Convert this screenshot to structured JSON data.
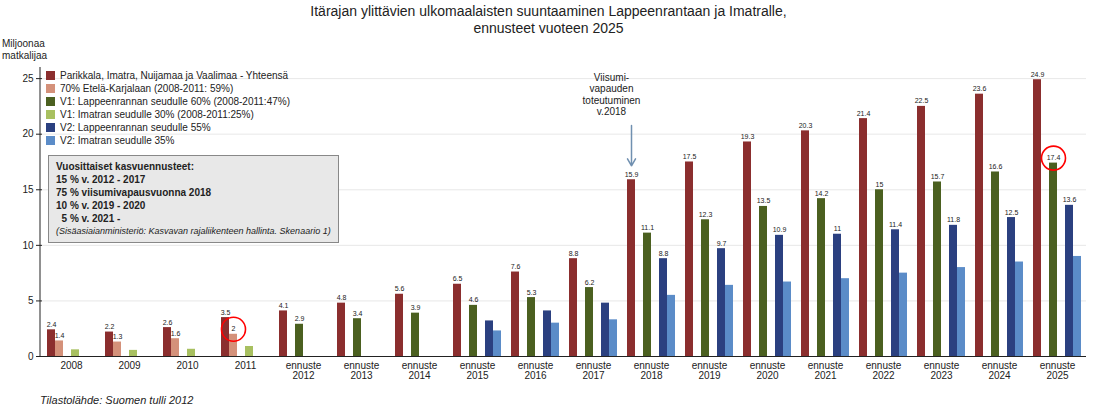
{
  "chart_data": {
    "type": "bar",
    "title": "Itärajan ylittävien ulkomaalaisten suuntaaminen Lappeenrantaan ja Imatralle,\nennusteet vuoteen 2025",
    "ylabel": "Miljoonaa\nmatkalijaa",
    "source": "Tilastolähde: Suomen tulli 2012",
    "categories": [
      "2008",
      "2009",
      "2010",
      "2011",
      "ennuste\n2012",
      "ennuste\n2013",
      "ennuste\n2014",
      "ennuste\n2015",
      "ennuste\n2016",
      "ennuste\n2017",
      "ennuste\n2018",
      "ennuste\n2019",
      "ennuste\n2020",
      "ennuste\n2021",
      "ennuste\n2022",
      "ennuste\n2023",
      "ennuste\n2024",
      "ennuste\n2025"
    ],
    "series": [
      {
        "name": "Parikkala, Imatra, Nuijamaa ja Vaalimaa - Yhteensä",
        "color": "#8B2E2E",
        "values": [
          2.4,
          2.2,
          2.6,
          3.5,
          4.1,
          4.8,
          5.6,
          6.5,
          7.6,
          8.8,
          15.9,
          17.5,
          19.3,
          20.3,
          21.4,
          22.5,
          23.6,
          24.9
        ],
        "value_labels": [
          "2.4",
          "2.2",
          "2.6",
          "3.5",
          "4.1",
          "4.8",
          "5.6",
          "6.5",
          "7.6",
          "8.8",
          "15.9",
          "17.5",
          "19.3",
          "20.3",
          "21.4",
          "22.5",
          "23.6",
          "24.9"
        ]
      },
      {
        "name": "70% Etelä-Karjalaan (2008-2011: 59%)",
        "color": "#D4917A",
        "values": [
          1.4,
          1.3,
          1.6,
          2.0,
          null,
          null,
          null,
          null,
          null,
          null,
          null,
          null,
          null,
          null,
          null,
          null,
          null,
          null
        ],
        "value_labels": [
          "1.4",
          "1.3",
          "1.6",
          "2",
          null,
          null,
          null,
          null,
          null,
          null,
          null,
          null,
          null,
          null,
          null,
          null,
          null,
          null
        ]
      },
      {
        "name": "V1: Lappeenrannan seudulle 60% (2008-2011:47%)",
        "color": "#4B6020",
        "values": [
          null,
          null,
          null,
          null,
          2.9,
          3.4,
          3.9,
          4.6,
          5.3,
          6.2,
          11.1,
          12.3,
          13.5,
          14.2,
          15.0,
          15.7,
          16.6,
          17.4
        ],
        "value_labels": [
          null,
          null,
          null,
          null,
          "2.9",
          "3.4",
          "3.9",
          "4.6",
          "5.3",
          "6.2",
          "11.1",
          "12.3",
          "13.5",
          "14.2",
          "15",
          "15.7",
          "16.6",
          "17.4"
        ]
      },
      {
        "name": "V1: Imatran seudulle 30% (2008-2011:25%)",
        "color": "#A8C060",
        "values": [
          0.6,
          0.55,
          0.65,
          0.9,
          null,
          null,
          null,
          null,
          null,
          null,
          null,
          null,
          null,
          null,
          null,
          null,
          null,
          null
        ]
      },
      {
        "name": "V2: Lappeenrannan seudulle 55%",
        "color": "#2B4080",
        "values": [
          null,
          null,
          null,
          null,
          null,
          null,
          null,
          3.2,
          4.1,
          4.8,
          8.8,
          9.7,
          10.9,
          11.0,
          11.4,
          11.8,
          12.5,
          13.6
        ],
        "value_labels": [
          null,
          null,
          null,
          null,
          null,
          null,
          null,
          null,
          null,
          null,
          "8.8",
          "9.7",
          "10.9",
          "11",
          "11.4",
          "11.8",
          "12.5",
          "13.6"
        ]
      },
      {
        "name": "V2: Imatran seudulle 35%",
        "color": "#5B8CC8",
        "values": [
          null,
          null,
          null,
          null,
          null,
          null,
          null,
          2.3,
          3.0,
          3.3,
          5.5,
          6.4,
          6.7,
          7.0,
          7.5,
          8.0,
          8.5,
          9.0
        ]
      }
    ],
    "ylim": [
      0,
      26
    ],
    "yticks": [
      0,
      5,
      10,
      15,
      20,
      25
    ],
    "grid": true,
    "legend": "top-left",
    "annotations": [
      {
        "text": "Viisumi-\nvapauden\ntoteutuminen\nv.2018",
        "category": "ennuste\n2018",
        "series": "Parikkala, Imatra, Nuijamaa ja Vaalimaa - Yhteensä",
        "color": "#B8D0E8"
      }
    ],
    "highlights": [
      {
        "category": "ennuste\n2025",
        "series": "V1: Lappeenrannan seudulle 60% (2008-2011:47%)",
        "color": "red"
      },
      {
        "category": "2011",
        "series": "70% Etelä-Karjalaan (2008-2011: 59%)",
        "color": "red"
      }
    ],
    "text_box": [
      "Vuosittaiset kasvuennusteet:",
      "15 % v. 2012 - 2017",
      "75 % viisumivapausvuonna 2018",
      "10 % v. 2019 - 2020",
      "  5 % v. 2021 -",
      "(Sisäasiaianministeriö: Kasvavan rajaliikenteen hallinta. Skenaario 1)"
    ]
  }
}
